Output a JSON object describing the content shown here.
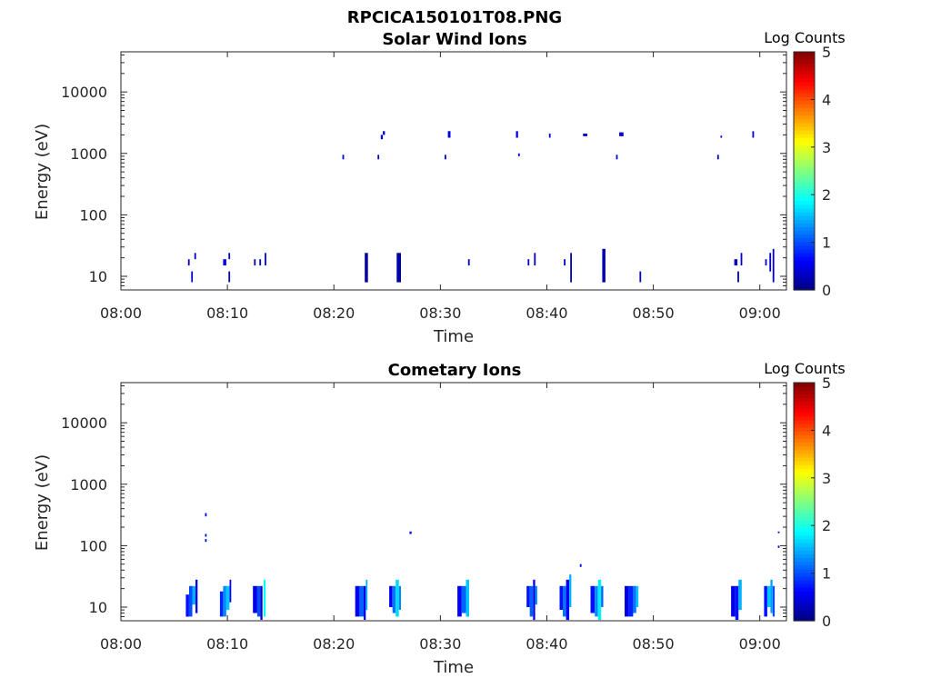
{
  "figure": {
    "suptitle": "RPCICA150101T08.PNG"
  },
  "chart_data": [
    {
      "type": "heatmap",
      "title": "Solar Wind Ions",
      "xlabel": "Time",
      "ylabel": "Energy (eV)",
      "x_ticks": [
        "08:00",
        "08:10",
        "08:20",
        "08:30",
        "08:40",
        "08:50",
        "09:00"
      ],
      "x_range_minutes": [
        0,
        62.5
      ],
      "y_scale": "log",
      "y_range": [
        6,
        45000
      ],
      "y_ticks": [
        10,
        100,
        1000,
        10000
      ],
      "y_tick_labels": [
        "10",
        "100",
        "1000",
        "10000"
      ],
      "colorbar": {
        "label": "Log Counts",
        "range": [
          0,
          5
        ],
        "ticks": [
          "0",
          "1",
          "2",
          "3",
          "4",
          "5"
        ],
        "colormap": "jet"
      },
      "grid": false,
      "cells": [
        [
          6.3,
          6.45,
          15,
          19,
          0.3
        ],
        [
          6.6,
          6.75,
          8,
          12,
          0.4
        ],
        [
          6.9,
          7.05,
          19,
          24,
          0.4
        ],
        [
          9.6,
          9.9,
          15,
          19,
          0.6
        ],
        [
          10.1,
          10.25,
          19,
          24,
          0.4
        ],
        [
          10.1,
          10.25,
          8,
          12,
          0.3
        ],
        [
          12.5,
          12.65,
          15,
          19,
          0.3
        ],
        [
          13.0,
          13.15,
          15,
          19,
          0.4
        ],
        [
          13.5,
          13.65,
          15,
          24,
          0.5
        ],
        [
          20.8,
          20.95,
          800,
          950,
          0.5
        ],
        [
          22.9,
          23.2,
          8,
          24,
          0.2
        ],
        [
          24.1,
          24.25,
          800,
          950,
          0.4
        ],
        [
          24.4,
          24.6,
          1700,
          2000,
          0.5
        ],
        [
          24.6,
          24.8,
          2000,
          2300,
          0.4
        ],
        [
          25.9,
          26.3,
          8,
          24,
          0.2
        ],
        [
          30.4,
          30.55,
          800,
          950,
          0.4
        ],
        [
          30.7,
          30.95,
          1800,
          2300,
          0.5
        ],
        [
          32.6,
          32.75,
          15,
          19,
          0.4
        ],
        [
          37.1,
          37.3,
          1800,
          2300,
          0.5
        ],
        [
          37.3,
          37.45,
          900,
          1000,
          0.6
        ],
        [
          38.2,
          38.35,
          15,
          19,
          0.3
        ],
        [
          38.8,
          38.95,
          15,
          24,
          0.4
        ],
        [
          40.2,
          40.35,
          1800,
          2100,
          0.6
        ],
        [
          41.6,
          41.75,
          15,
          19,
          0.4
        ],
        [
          42.2,
          42.35,
          8,
          24,
          0.3
        ],
        [
          43.4,
          43.8,
          1900,
          2100,
          0.4
        ],
        [
          45.2,
          45.5,
          8,
          28,
          0.2
        ],
        [
          46.5,
          46.65,
          800,
          950,
          0.5
        ],
        [
          46.8,
          47.2,
          1900,
          2200,
          0.4
        ],
        [
          48.7,
          48.85,
          8,
          12,
          0.4
        ],
        [
          56.0,
          56.15,
          800,
          950,
          0.4
        ],
        [
          56.3,
          56.45,
          1800,
          1950,
          0.7
        ],
        [
          57.6,
          57.9,
          15,
          19,
          0.3
        ],
        [
          57.9,
          58.05,
          8,
          12,
          0.3
        ],
        [
          58.2,
          58.35,
          15,
          24,
          0.4
        ],
        [
          59.3,
          59.45,
          1800,
          2300,
          0.5
        ],
        [
          60.5,
          60.65,
          15,
          19,
          0.4
        ],
        [
          60.9,
          61.05,
          12,
          24,
          0.3
        ],
        [
          61.2,
          61.35,
          8,
          28,
          0.3
        ]
      ]
    },
    {
      "type": "heatmap",
      "title": "Cometary Ions",
      "xlabel": "Time",
      "ylabel": "Energy (eV)",
      "x_ticks": [
        "08:00",
        "08:10",
        "08:20",
        "08:30",
        "08:40",
        "08:50",
        "09:00"
      ],
      "x_range_minutes": [
        0,
        62.5
      ],
      "y_scale": "log",
      "y_range": [
        6,
        45000
      ],
      "y_ticks": [
        10,
        100,
        1000,
        10000
      ],
      "y_tick_labels": [
        "10",
        "100",
        "1000",
        "10000"
      ],
      "colorbar": {
        "label": "Log Counts",
        "range": [
          0,
          5
        ],
        "ticks": [
          "0",
          "1",
          "2",
          "3",
          "4",
          "5"
        ],
        "colormap": "jet"
      },
      "grid": false,
      "cells": [
        [
          6.1,
          6.4,
          7,
          16,
          0.7
        ],
        [
          6.4,
          6.7,
          7,
          22,
          1.0
        ],
        [
          6.7,
          7.0,
          11,
          22,
          1.5
        ],
        [
          7.0,
          7.2,
          8,
          28,
          0.5
        ],
        [
          7.9,
          8.05,
          300,
          340,
          0.6
        ],
        [
          7.9,
          8.05,
          140,
          155,
          0.6
        ],
        [
          7.9,
          8.05,
          115,
          128,
          0.6
        ],
        [
          9.3,
          9.6,
          7,
          18,
          0.8
        ],
        [
          9.6,
          9.9,
          7,
          22,
          1.3
        ],
        [
          9.9,
          10.2,
          9,
          22,
          1.6
        ],
        [
          10.2,
          10.35,
          12,
          28,
          0.5
        ],
        [
          12.4,
          12.8,
          8,
          22,
          0.5
        ],
        [
          12.8,
          13.1,
          7,
          22,
          1.0
        ],
        [
          13.1,
          13.3,
          6.2,
          22,
          0.4
        ],
        [
          13.4,
          13.6,
          7,
          28,
          1.9
        ],
        [
          22.0,
          22.4,
          7,
          22,
          0.6
        ],
        [
          22.4,
          22.8,
          7,
          22,
          1.1
        ],
        [
          22.8,
          23.0,
          6.2,
          22,
          0.5
        ],
        [
          23.0,
          23.15,
          9,
          28,
          1.5
        ],
        [
          25.2,
          25.5,
          10,
          22,
          0.6
        ],
        [
          25.5,
          25.8,
          8,
          22,
          1.2
        ],
        [
          25.8,
          26.1,
          7,
          28,
          1.7
        ],
        [
          26.1,
          26.3,
          9,
          22,
          1.3
        ],
        [
          27.1,
          27.3,
          155,
          170,
          0.6
        ],
        [
          31.6,
          32.0,
          7,
          22,
          0.6
        ],
        [
          32.0,
          32.4,
          8,
          22,
          1.1
        ],
        [
          32.4,
          32.7,
          7,
          28,
          1.6
        ],
        [
          38.1,
          38.4,
          10,
          22,
          0.7
        ],
        [
          38.4,
          38.7,
          7,
          22,
          1.1
        ],
        [
          38.7,
          38.9,
          6.2,
          28,
          0.5
        ],
        [
          38.9,
          39.1,
          11,
          22,
          1.3
        ],
        [
          41.2,
          41.5,
          9,
          22,
          0.7
        ],
        [
          41.5,
          41.8,
          7,
          22,
          1.2
        ],
        [
          41.8,
          42.1,
          6.2,
          28,
          0.6
        ],
        [
          42.1,
          42.3,
          10,
          34,
          1.5
        ],
        [
          43.1,
          43.25,
          45,
          50,
          0.6
        ],
        [
          44.1,
          44.5,
          8,
          22,
          0.7
        ],
        [
          44.5,
          44.8,
          7,
          22,
          1.3
        ],
        [
          44.8,
          45.1,
          6.2,
          28,
          1.8
        ],
        [
          45.1,
          45.3,
          10,
          22,
          1.1
        ],
        [
          47.3,
          47.7,
          7,
          22,
          0.5
        ],
        [
          47.7,
          48.1,
          7,
          22,
          0.8
        ],
        [
          48.1,
          48.4,
          8,
          22,
          1.2
        ],
        [
          48.4,
          48.6,
          10,
          22,
          1.6
        ],
        [
          57.3,
          57.7,
          7,
          22,
          0.5
        ],
        [
          57.7,
          58.0,
          6.2,
          22,
          0.7
        ],
        [
          58.0,
          58.3,
          9,
          28,
          1.5
        ],
        [
          60.4,
          60.7,
          7,
          22,
          0.7
        ],
        [
          60.7,
          61.0,
          10,
          22,
          1.6
        ],
        [
          61.0,
          61.2,
          8,
          28,
          1.4
        ],
        [
          61.2,
          61.4,
          7,
          22,
          1.0
        ],
        [
          61.7,
          61.85,
          160,
          170,
          0.5
        ],
        [
          61.7,
          61.85,
          92,
          100,
          0.5
        ]
      ]
    }
  ]
}
